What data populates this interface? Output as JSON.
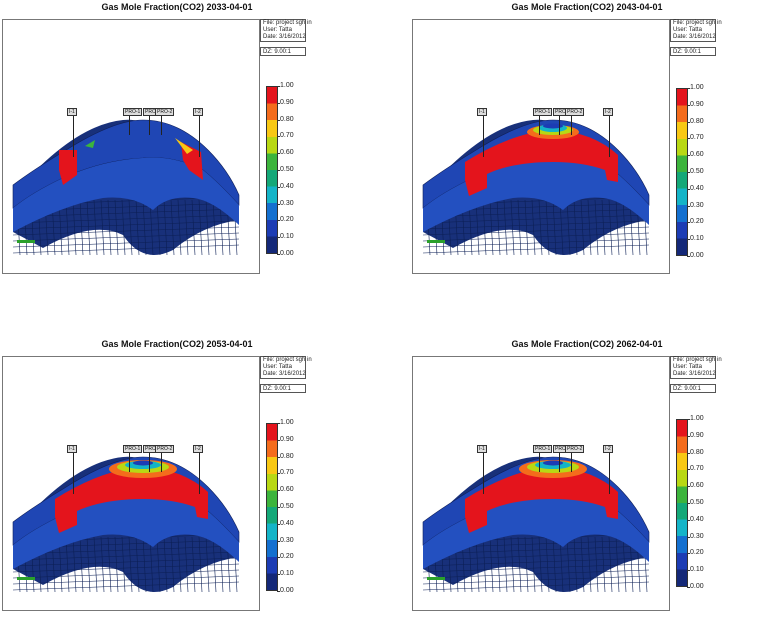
{
  "panels": [
    {
      "title": "Gas Mole Fraction(CO2) 2033-04-01",
      "info": {
        "file": "File: project sgh in",
        "user": "User: Tatta",
        "date": "Date: 3/16/2012"
      },
      "dz": "DZ: 9.00:1",
      "plume": "small",
      "wells": [
        "I-1",
        "PRO-1",
        "PRO-3",
        "PRO-2",
        "I-2"
      ]
    },
    {
      "title": "Gas Mole Fraction(CO2) 2043-04-01",
      "info": {
        "file": "File: project sgh in",
        "user": "User: Tatta",
        "date": "Date: 3/16/2012"
      },
      "dz": "DZ: 9.00:1",
      "plume": "medium",
      "wells": [
        "I-1",
        "PRO-1",
        "PRO-3",
        "PRO-2",
        "I-2"
      ]
    },
    {
      "title": "Gas Mole Fraction(CO2) 2053-04-01",
      "info": {
        "file": "File: project sgh in",
        "user": "User: Tatta",
        "date": "Date: 3/16/2012"
      },
      "dz": "DZ: 9.00:1",
      "plume": "large",
      "wells": [
        "I-1",
        "PRO-1",
        "PRO-3",
        "PRO-2",
        "I-2"
      ]
    },
    {
      "title": "Gas Mole Fraction(CO2) 2062-04-01",
      "info": {
        "file": "File: project sgh in",
        "user": "User: Tatta",
        "date": "Date: 3/16/2012"
      },
      "dz": "DZ: 9.00:1",
      "plume": "large",
      "wells": [
        "I-1",
        "PRO-1",
        "PRO-3",
        "PRO-2",
        "I-2"
      ]
    }
  ],
  "legend_ticks": [
    "1.00",
    "0.90",
    "0.80",
    "0.70",
    "0.60",
    "0.50",
    "0.40",
    "0.30",
    "0.20",
    "0.10",
    "0.00"
  ],
  "colors": {
    "reservoir_blue": "#1f46b4",
    "reservoir_dark": "#18307a",
    "co2_red": "#e4141c",
    "scale_green": "#2aa02a"
  }
}
